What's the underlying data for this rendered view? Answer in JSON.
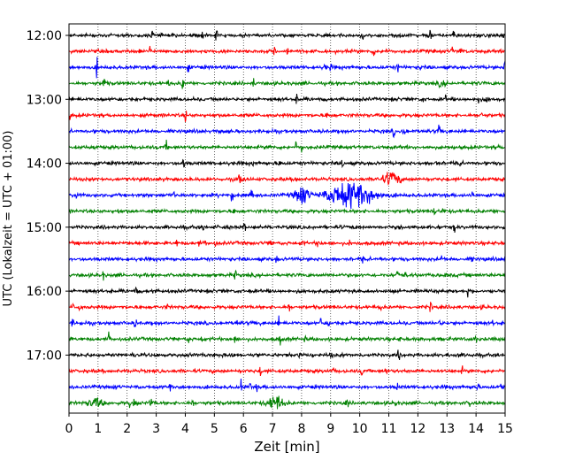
{
  "chart_data": {
    "type": "line",
    "xlabel": "Zeit  [min]",
    "ylabel": "UTC (Lokalzeit = UTC + 01:00)",
    "xlim": [
      0,
      15
    ],
    "x_ticks": [
      "0",
      "1",
      "2",
      "3",
      "4",
      "5",
      "6",
      "7",
      "8",
      "9",
      "10",
      "11",
      "12",
      "13",
      "14",
      "15"
    ],
    "y_ticks": [
      "12:00",
      "13:00",
      "14:00",
      "15:00",
      "16:00",
      "17:00"
    ],
    "row_interval_minutes": 15,
    "rows": 24,
    "first_row": "12:00",
    "grid": "vertical dotted at every minute",
    "trace_colors": [
      "#000000",
      "#ff0000",
      "#0000ff",
      "#008000"
    ],
    "events": [
      {
        "row": 10,
        "time_min": 9.7,
        "amplitude": "large"
      },
      {
        "row": 10,
        "time_min": 8.0,
        "amplitude": "medium"
      },
      {
        "row": 9,
        "time_min": 11.1,
        "amplitude": "medium"
      },
      {
        "row": 23,
        "time_min": 7.1,
        "amplitude": "medium"
      },
      {
        "row": 23,
        "time_min": 0.9,
        "amplitude": "small"
      }
    ]
  }
}
